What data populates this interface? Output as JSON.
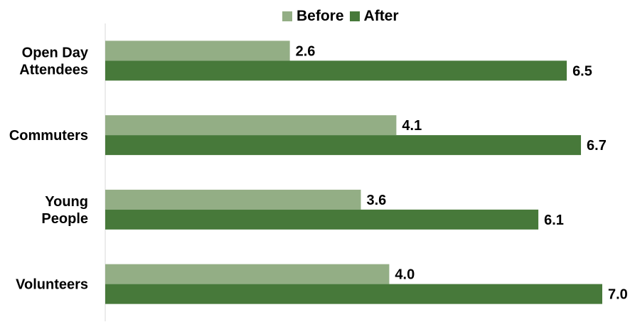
{
  "chart_data": {
    "type": "bar",
    "orientation": "horizontal",
    "categories": [
      [
        "Open Day",
        "Attendees"
      ],
      [
        "Commuters"
      ],
      [
        "Young",
        "People"
      ],
      [
        "Volunteers"
      ]
    ],
    "series": [
      {
        "name": "Before",
        "color": "#93ae85",
        "values": [
          2.6,
          4.1,
          3.6,
          4.0
        ]
      },
      {
        "name": "After",
        "color": "#47793a",
        "values": [
          6.5,
          6.7,
          6.1,
          7.0
        ]
      }
    ],
    "xlim": [
      0,
      7.0
    ],
    "legend_position": "top-center",
    "grid": false,
    "value_format": "one-decimal"
  }
}
